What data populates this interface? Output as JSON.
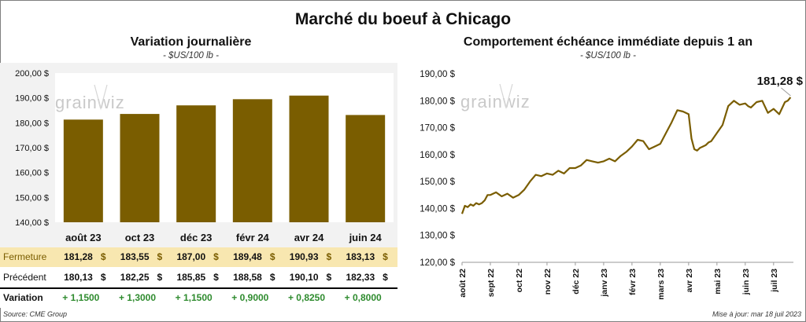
{
  "title": "Marché du boeuf à Chicago",
  "left_chart": {
    "title": "Variation  journalière",
    "subtitle": "- $US/100 lb -"
  },
  "right_chart": {
    "title": "Comportement  échéance immédiate depuis 1 an",
    "subtitle": "- $US/100 lb -",
    "last_label": "181,28 $"
  },
  "watermark": "grainwiz",
  "table": {
    "rows": [
      {
        "label": "Fermeture",
        "values": [
          "181,28",
          "183,55",
          "187,00",
          "189,48",
          "190,93",
          "183,13"
        ],
        "unit": "$"
      },
      {
        "label": "Précédent",
        "values": [
          "180,13",
          "182,25",
          "185,85",
          "188,58",
          "190,10",
          "182,33"
        ],
        "unit": "$"
      },
      {
        "label": "Variation",
        "values": [
          "+ 1,1500",
          "+ 1,3000",
          "+ 1,1500",
          "+ 0,9000",
          "+ 0,8250",
          "+ 0,8000"
        ]
      }
    ]
  },
  "footer": {
    "source": "Source: CME Group",
    "updated": "Mise à jour: mar 18 juil 2023"
  },
  "colors": {
    "bar": "#7a5d00",
    "fermeture_bg": "#f8e7b0",
    "variation_text": "#2e8b2e",
    "panel_bg": "#f2f2f2"
  },
  "chart_data": [
    {
      "type": "bar",
      "categories": [
        "août 23",
        "oct 23",
        "déc 23",
        "févr 24",
        "avr 24",
        "juin 24"
      ],
      "values": [
        181.28,
        183.55,
        187.0,
        189.48,
        190.93,
        183.13
      ],
      "ylim": [
        140,
        200
      ],
      "yticks": [
        "140,00 $",
        "150,00 $",
        "160,00 $",
        "170,00 $",
        "180,00 $",
        "190,00 $",
        "200,00 $"
      ],
      "grid": false
    },
    {
      "type": "line",
      "x_labels": [
        "août 22",
        "sept 22",
        "oct 22",
        "nov 22",
        "déc 22",
        "janv 23",
        "févr 23",
        "mars 23",
        "avr 23",
        "mai 23",
        "juin 23",
        "juil 23"
      ],
      "ylim": [
        120,
        190
      ],
      "yticks": [
        "120,00 $",
        "130,00 $",
        "140,00 $",
        "150,00 $",
        "160,00 $",
        "170,00 $",
        "180,00 $",
        "190,00 $"
      ],
      "series": [
        {
          "x": [
            0.0,
            0.1,
            0.2,
            0.3,
            0.4,
            0.5,
            0.6,
            0.7,
            0.8,
            0.9,
            1.0,
            1.2,
            1.4,
            1.6,
            1.8,
            2.0,
            2.2,
            2.4,
            2.6,
            2.8,
            3.0,
            3.2,
            3.4,
            3.6,
            3.8,
            4.0,
            4.2,
            4.4,
            4.6,
            4.8,
            5.0,
            5.2,
            5.4,
            5.6,
            5.8,
            6.0,
            6.2,
            6.4,
            6.6,
            6.8,
            7.0,
            7.2,
            7.4,
            7.6,
            7.8,
            8.0,
            8.1,
            8.2,
            8.3,
            8.4,
            8.5,
            8.6,
            8.7,
            8.8,
            9.0,
            9.2,
            9.4,
            9.6,
            9.8,
            10.0,
            10.1,
            10.2,
            10.4,
            10.6,
            10.8,
            11.0,
            11.2,
            11.4,
            11.5,
            11.6
          ],
          "y": [
            138.0,
            141.0,
            140.5,
            141.5,
            141.0,
            142.0,
            141.5,
            142.0,
            143.0,
            145.0,
            145.0,
            146.0,
            144.5,
            145.5,
            144.0,
            145.0,
            147.0,
            150.0,
            152.5,
            152.0,
            153.0,
            152.5,
            154.0,
            153.0,
            155.0,
            155.0,
            156.0,
            158.0,
            157.5,
            157.0,
            157.5,
            158.5,
            157.5,
            159.5,
            161.0,
            163.0,
            165.5,
            165.0,
            162.0,
            163.0,
            164.0,
            168.0,
            172.0,
            176.5,
            176.0,
            175.0,
            166.0,
            162.0,
            161.5,
            162.5,
            163.0,
            163.5,
            164.5,
            165.0,
            168.0,
            171.0,
            178.0,
            180.0,
            178.5,
            179.0,
            178.0,
            177.5,
            179.5,
            180.0,
            175.5,
            177.0,
            175.0,
            179.5,
            180.0,
            181.28
          ]
        }
      ]
    }
  ]
}
